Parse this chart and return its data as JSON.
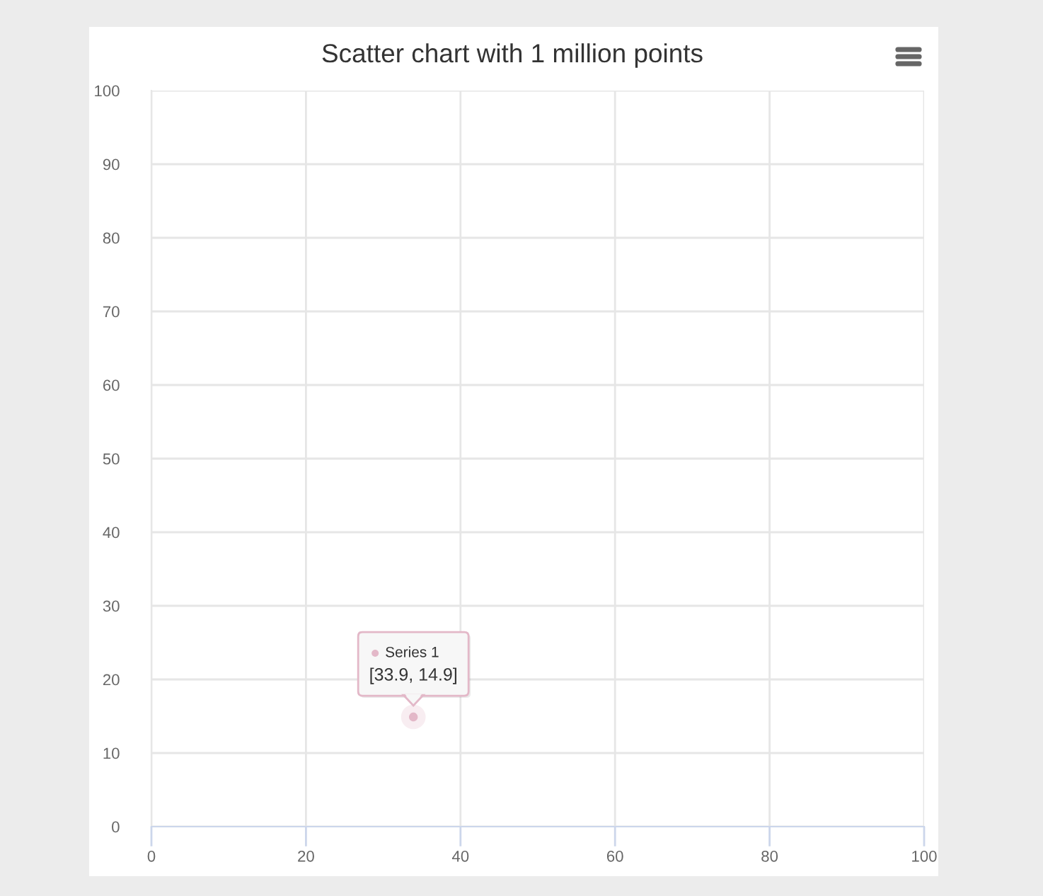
{
  "chart_data": {
    "type": "scatter",
    "title": "Scatter chart with 1 million points",
    "x": [
      33.9
    ],
    "series": [
      {
        "name": "Series 1",
        "color": "#e3b8c8",
        "values": [
          14.9
        ]
      }
    ],
    "xlim": [
      0,
      100
    ],
    "ylim": [
      0,
      100
    ],
    "xticks": [
      0,
      20,
      40,
      60,
      80,
      100
    ],
    "yticks": [
      0,
      10,
      20,
      30,
      40,
      50,
      60,
      70,
      80,
      90,
      100
    ],
    "grid": true,
    "marker": "circle",
    "annotations": [
      {
        "text": "[33.9, 14.9]",
        "x": 33.9,
        "y": 14.9
      }
    ]
  }
}
